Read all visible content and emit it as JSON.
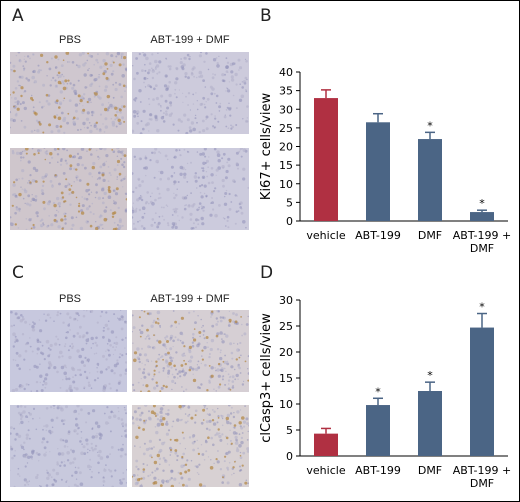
{
  "panels": {
    "a": {
      "letter": "A",
      "col_labels": [
        "PBS",
        "ABT-199 + DMF"
      ],
      "tint": "#b48a4a"
    },
    "c": {
      "letter": "C",
      "col_labels": [
        "PBS",
        "ABT-199 + DMF"
      ],
      "tint": "#b48a4a"
    },
    "b": {
      "letter": "B"
    },
    "d": {
      "letter": "D"
    }
  },
  "chart_data": [
    {
      "id": "b",
      "type": "bar",
      "categories": [
        [
          "vehicle"
        ],
        [
          "ABT-199"
        ],
        [
          "DMF"
        ],
        [
          "ABT-199 +",
          "DMF"
        ]
      ],
      "values": [
        33.0,
        26.5,
        22.0,
        2.4
      ],
      "errors": [
        2.2,
        2.3,
        1.8,
        0.5
      ],
      "significant": [
        false,
        false,
        true,
        true
      ],
      "colors": [
        "#b03042",
        "#4b6585",
        "#4b6585",
        "#4b6585"
      ],
      "ylabel": "Ki67+ cells/view",
      "ylim": [
        0,
        40
      ],
      "yticks": [
        0,
        5,
        10,
        15,
        20,
        25,
        30,
        35,
        40
      ],
      "marker": "*"
    },
    {
      "id": "d",
      "type": "bar",
      "categories": [
        [
          "vehicle"
        ],
        [
          "ABT-199"
        ],
        [
          "DMF"
        ],
        [
          "ABT-199 +",
          "DMF"
        ]
      ],
      "values": [
        4.3,
        9.8,
        12.5,
        24.7
      ],
      "errors": [
        1.0,
        1.3,
        1.7,
        2.7
      ],
      "significant": [
        false,
        true,
        true,
        true
      ],
      "colors": [
        "#b03042",
        "#4b6585",
        "#4b6585",
        "#4b6585"
      ],
      "ylabel": "clCasp3+ cells/view",
      "ylim": [
        0,
        30
      ],
      "yticks": [
        0,
        5,
        10,
        15,
        20,
        25,
        30
      ],
      "marker": "*"
    }
  ]
}
